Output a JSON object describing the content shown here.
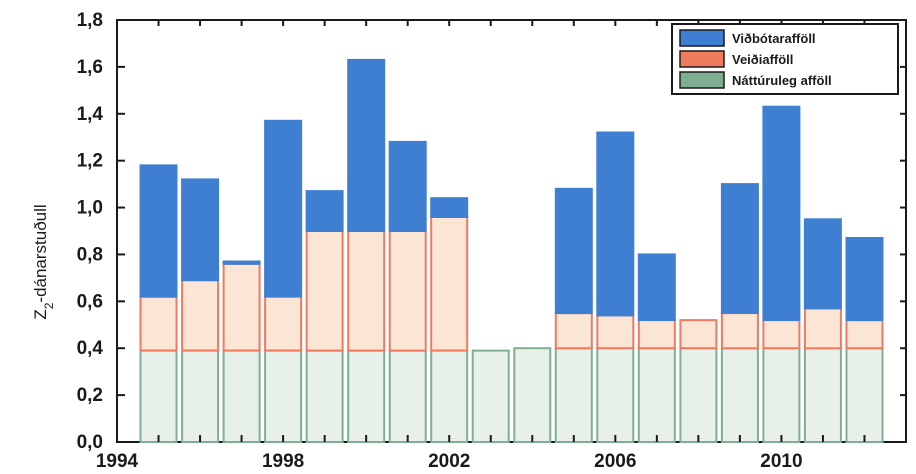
{
  "chart_data": {
    "type": "bar",
    "stacked": true,
    "ylabel": "Z₂-dánarstuðull",
    "ylabel_main": "Z",
    "ylabel_sub": "2",
    "ylabel_rest": "-dánarstuðull",
    "ylim": [
      0,
      1.8
    ],
    "yticks": [
      "0,0",
      "0,2",
      "0,4",
      "0,6",
      "0,8",
      "1,0",
      "1,2",
      "1,4",
      "1,6",
      "1,8"
    ],
    "xlim": [
      1994,
      2013
    ],
    "xticks": [
      "1994",
      "1998",
      "2002",
      "2006",
      "2010"
    ],
    "years": [
      1995,
      1996,
      1997,
      1998,
      1999,
      2000,
      2001,
      2002,
      2003,
      2004,
      2005,
      2006,
      2007,
      2008,
      2009,
      2010,
      2011,
      2012
    ],
    "series": [
      {
        "name": "Náttúruleg afföll",
        "color": "#7fae92",
        "fill": "#e8f0ea",
        "values": [
          0.39,
          0.39,
          0.39,
          0.39,
          0.39,
          0.39,
          0.39,
          0.39,
          0.39,
          0.4,
          0.4,
          0.4,
          0.4,
          0.4,
          0.4,
          0.4,
          0.4,
          0.4
        ]
      },
      {
        "name": "Veiðiafföll",
        "color": "#f07a5e",
        "fill": "#fbe6d6",
        "values": [
          0.23,
          0.3,
          0.37,
          0.23,
          0.51,
          0.51,
          0.51,
          0.57,
          0,
          0,
          0.15,
          0.14,
          0.12,
          0.12,
          0.15,
          0.12,
          0.17,
          0.12
        ]
      },
      {
        "name": "Viðbótarafföll",
        "color": "#3f7fd1",
        "fill": "#3f7fd1",
        "values": [
          0.56,
          0.43,
          0.01,
          0.75,
          0.17,
          0.73,
          0.38,
          0.08,
          0,
          0,
          0.53,
          0.78,
          0.28,
          0,
          0.55,
          0.91,
          0.38,
          0.35
        ]
      }
    ],
    "legend_position": "top-right",
    "grid": false
  }
}
